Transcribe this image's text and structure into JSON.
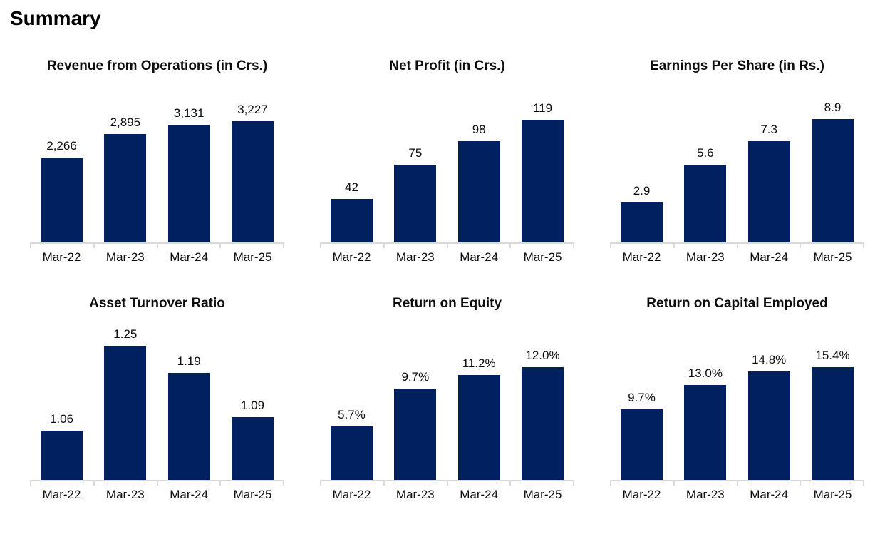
{
  "page": {
    "title": "Summary"
  },
  "colors": {
    "bar": "#002060",
    "axis": "#d9d9d9",
    "text": "#0d0d0d"
  },
  "chart_data": [
    {
      "type": "bar",
      "title": "Revenue from Operations (in Crs.)",
      "categories": [
        "Mar-22",
        "Mar-23",
        "Mar-24",
        "Mar-25"
      ],
      "values": [
        2266,
        2895,
        3131,
        3227
      ],
      "labels": [
        "2,266",
        "2,895",
        "3,131",
        "3,227"
      ],
      "xlabel": "",
      "ylabel": "",
      "ylim": [
        0,
        3800
      ],
      "grid": false,
      "legend": "none",
      "data_labels": "above-bar"
    },
    {
      "type": "bar",
      "title": "Net Profit (in Crs.)",
      "categories": [
        "Mar-22",
        "Mar-23",
        "Mar-24",
        "Mar-25"
      ],
      "values": [
        42,
        75,
        98,
        119
      ],
      "labels": [
        "42",
        "75",
        "98",
        "119"
      ],
      "xlabel": "",
      "ylabel": "",
      "ylim": [
        0,
        138
      ],
      "grid": false,
      "legend": "none",
      "data_labels": "above-bar"
    },
    {
      "type": "bar",
      "title": "Earnings Per Share (in Rs.)",
      "categories": [
        "Mar-22",
        "Mar-23",
        "Mar-24",
        "Mar-25"
      ],
      "values": [
        2.9,
        5.6,
        7.3,
        8.9
      ],
      "labels": [
        "2.9",
        "5.6",
        "7.3",
        "8.9"
      ],
      "xlabel": "",
      "ylabel": "",
      "ylim": [
        0,
        10.3
      ],
      "grid": false,
      "legend": "none",
      "data_labels": "above-bar"
    },
    {
      "type": "bar",
      "title": "Asset Turnover Ratio",
      "categories": [
        "Mar-22",
        "Mar-23",
        "Mar-24",
        "Mar-25"
      ],
      "values": [
        1.06,
        1.25,
        1.19,
        1.09
      ],
      "labels": [
        "1.06",
        "1.25",
        "1.19",
        "1.09"
      ],
      "xlabel": "",
      "ylabel": "",
      "ylim": [
        0.95,
        1.27
      ],
      "grid": false,
      "legend": "none",
      "data_labels": "above-bar"
    },
    {
      "type": "bar",
      "title": "Return on Equity",
      "categories": [
        "Mar-22",
        "Mar-23",
        "Mar-24",
        "Mar-25"
      ],
      "values": [
        5.7,
        9.7,
        11.2,
        12.0
      ],
      "labels": [
        "5.7%",
        "9.7%",
        "11.2%",
        "12.0%"
      ],
      "xlabel": "",
      "ylabel": "",
      "ylim": [
        0,
        15.2
      ],
      "grid": false,
      "legend": "none",
      "data_labels": "above-bar"
    },
    {
      "type": "bar",
      "title": "Return on Capital Employed",
      "categories": [
        "Mar-22",
        "Mar-23",
        "Mar-24",
        "Mar-25"
      ],
      "values": [
        9.7,
        13.0,
        14.8,
        15.4
      ],
      "labels": [
        "9.7%",
        "13.0%",
        "14.8%",
        "15.4%"
      ],
      "xlabel": "",
      "ylabel": "",
      "ylim": [
        0,
        19.5
      ],
      "grid": false,
      "legend": "none",
      "data_labels": "above-bar"
    }
  ]
}
